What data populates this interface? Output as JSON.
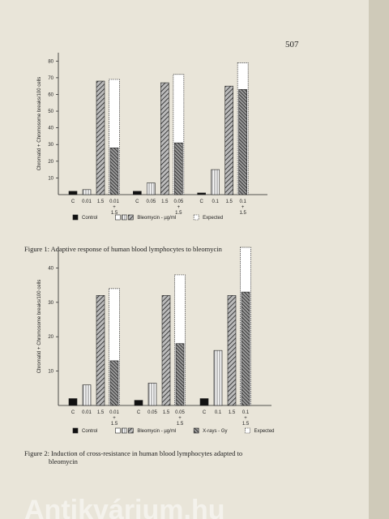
{
  "page_number": "507",
  "chart_data": [
    {
      "type": "bar",
      "y_label": "Chromatid + Chromosome breaks/100 cells",
      "ylim": [
        0,
        85
      ],
      "yticks": [
        10,
        20,
        30,
        40,
        50,
        60,
        70,
        80
      ],
      "groups": [
        {
          "categories": [
            "C",
            "0.01",
            "1.5",
            "0.01 + 1.5"
          ],
          "values": [
            2,
            3,
            68,
            28
          ],
          "expected": 69
        },
        {
          "categories": [
            "C",
            "0.05",
            "1.5",
            "0.05 + 1.5"
          ],
          "values": [
            2,
            7,
            67,
            31
          ],
          "expected": 72
        },
        {
          "categories": [
            "C",
            "0.1",
            "1.5",
            "0.1 + 1.5"
          ],
          "values": [
            1,
            15,
            65,
            63
          ],
          "expected": 79
        }
      ],
      "legend": [
        "Control",
        "Bleomycin - µg/ml",
        "Expected"
      ],
      "caption": "Figure 1: Adaptive response of human blood lymphocytes to bleomycin"
    },
    {
      "type": "bar",
      "y_label": "Chromatid + Chromosome breaks/100 cells",
      "ylim": [
        0,
        46
      ],
      "yticks": [
        10,
        20,
        30,
        40
      ],
      "groups": [
        {
          "categories": [
            "C",
            "0.01",
            "1.5",
            "0.01 + 1.5"
          ],
          "values": [
            2,
            6,
            32,
            13
          ],
          "expected": 34
        },
        {
          "categories": [
            "C",
            "0.05",
            "1.5",
            "0.05 + 1.5"
          ],
          "values": [
            1.5,
            6.5,
            32,
            18
          ],
          "expected": 38
        },
        {
          "categories": [
            "C",
            "0.1",
            "1.5",
            "0.1 + 1.5"
          ],
          "values": [
            2,
            16,
            32,
            33
          ],
          "expected": 46
        }
      ],
      "legend": [
        "Control",
        "Bleomycin - µg/ml",
        "X-rays - Gy",
        "Expected"
      ],
      "caption": "Figure 2: Induction of cross-resistance in human blood lymphocytes adapted to bleomycin"
    }
  ],
  "watermark": "Antikvárium.hu"
}
